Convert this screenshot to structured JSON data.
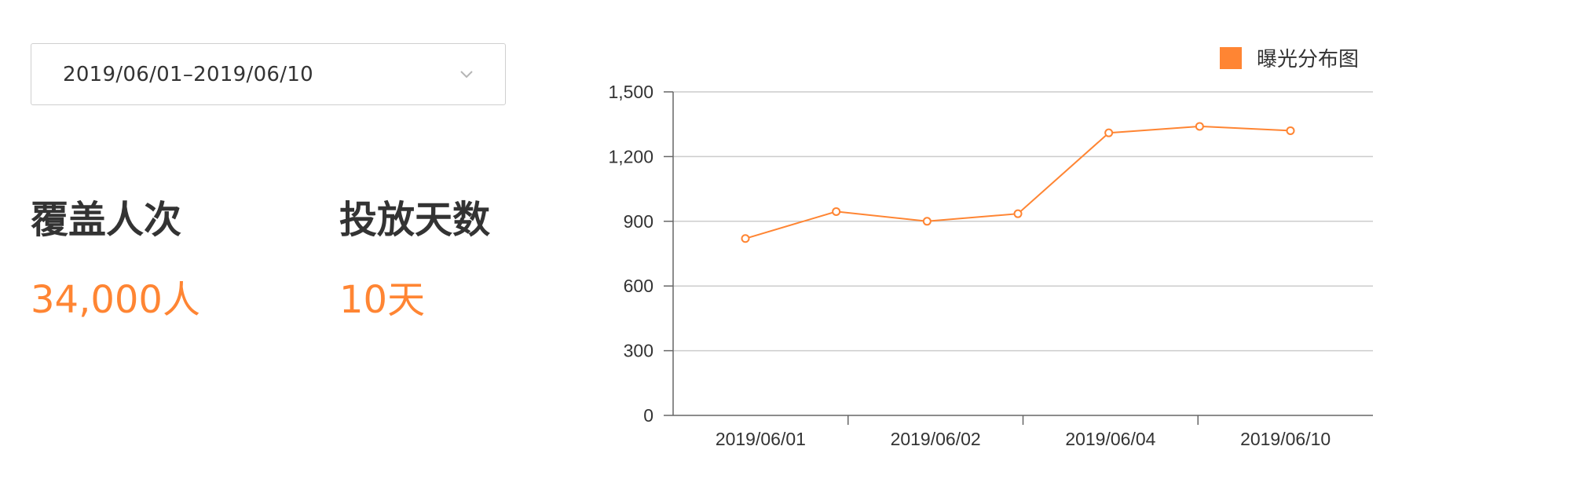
{
  "date_range": {
    "value": "2019/06/01–2019/06/10",
    "icon": "chevron-down-icon"
  },
  "stats": [
    {
      "label": "覆盖人次",
      "value": "34,000人"
    },
    {
      "label": "投放天数",
      "value": "10天"
    }
  ],
  "colors": {
    "accent": "#ff8533",
    "grid": "#cccccc",
    "axis": "#666666",
    "text": "#333333"
  },
  "chart_data": {
    "type": "line",
    "legend": [
      "曝光分布图"
    ],
    "legend_position": "top-right",
    "grid": true,
    "ylim": [
      0,
      1500
    ],
    "yticks": [
      0,
      300,
      600,
      900,
      1200,
      1500
    ],
    "ytick_labels": [
      "0",
      "300",
      "600",
      "900",
      "1,200",
      "1,500"
    ],
    "xtick_labels": [
      "2019/06/01",
      "2019/06/02",
      "2019/06/04",
      "2019/06/10"
    ],
    "series": [
      {
        "name": "曝光分布图",
        "values": [
          820,
          945,
          900,
          935,
          1310,
          1340,
          1320
        ]
      }
    ]
  }
}
